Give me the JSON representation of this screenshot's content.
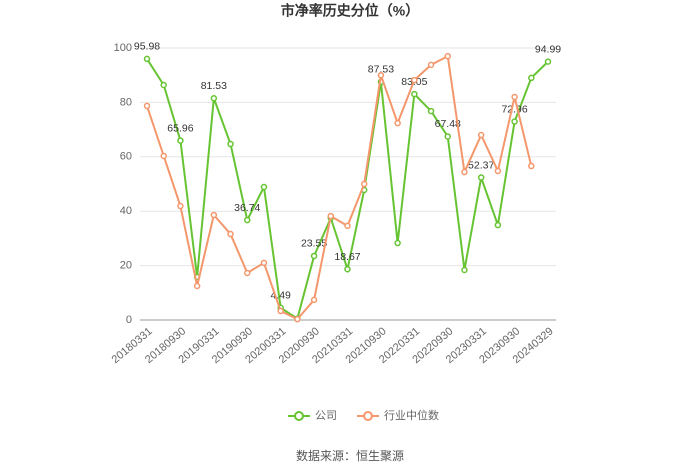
{
  "chart_data": {
    "type": "line",
    "title": "市净率历史分位（%）",
    "categories": [
      "20180331",
      null,
      "20180930",
      null,
      "20190331",
      null,
      "20190930",
      null,
      "20200331",
      null,
      "20200930",
      null,
      "20210331",
      null,
      "20210930",
      null,
      "20220331",
      null,
      "20220930",
      null,
      "20230331",
      null,
      "20230930",
      null,
      "20240329"
    ],
    "series": [
      {
        "name": "公司",
        "color": "#66c432",
        "values": [
          95.98,
          86.4,
          65.96,
          15.8,
          81.53,
          64.7,
          36.74,
          48.9,
          4.49,
          0.5,
          23.55,
          37.5,
          18.67,
          47.8,
          87.53,
          28.3,
          83.05,
          76.8,
          67.48,
          18.4,
          52.37,
          34.9,
          72.96,
          89,
          94.99
        ],
        "value_labels": [
          "95.98",
          null,
          "65.96",
          null,
          "81.53",
          null,
          "36.74",
          null,
          "4.49",
          null,
          "23.55",
          null,
          "18.67",
          null,
          "87.53",
          null,
          "83.05",
          null,
          "67.48",
          null,
          "52.37",
          null,
          "72.96",
          null,
          "94.99"
        ]
      },
      {
        "name": "行业中位数",
        "color": "#f4976c",
        "values": [
          78.7,
          60.3,
          41.9,
          12.5,
          38.6,
          31.6,
          17.3,
          21,
          3.3,
          0.3,
          7.4,
          38.2,
          34.6,
          50,
          90,
          72.4,
          88.2,
          93.8,
          97,
          54.4,
          68,
          54.8,
          82,
          56.6,
          null
        ]
      }
    ],
    "ylim": [
      0,
      100
    ],
    "yticks": [
      0,
      20,
      40,
      60,
      80,
      100
    ],
    "grid": true,
    "legend": "bottom",
    "source": "数据来源：恒生聚源"
  }
}
